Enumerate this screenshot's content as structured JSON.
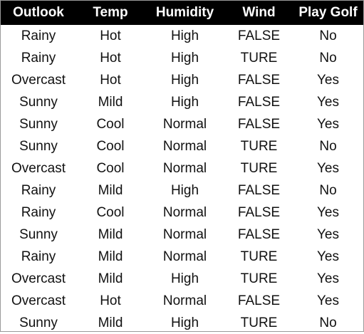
{
  "table": {
    "headers": [
      "Outlook",
      "Temp",
      "Humidity",
      "Wind",
      "Play Golf"
    ],
    "rows": [
      [
        "Rainy",
        "Hot",
        "High",
        "FALSE",
        "No"
      ],
      [
        "Rainy",
        "Hot",
        "High",
        "TURE",
        "No"
      ],
      [
        "Overcast",
        "Hot",
        "High",
        "FALSE",
        "Yes"
      ],
      [
        "Sunny",
        "Mild",
        "High",
        "FALSE",
        "Yes"
      ],
      [
        "Sunny",
        "Cool",
        "Normal",
        "FALSE",
        "Yes"
      ],
      [
        "Sunny",
        "Cool",
        "Normal",
        "TURE",
        "No"
      ],
      [
        "Overcast",
        "Cool",
        "Normal",
        "TURE",
        "Yes"
      ],
      [
        "Rainy",
        "Mild",
        "High",
        "FALSE",
        "No"
      ],
      [
        "Rainy",
        "Cool",
        "Normal",
        "FALSE",
        "Yes"
      ],
      [
        "Sunny",
        "Mild",
        "Normal",
        "FALSE",
        "Yes"
      ],
      [
        "Rainy",
        "Mild",
        "Normal",
        "TURE",
        "Yes"
      ],
      [
        "Overcast",
        "Mild",
        "High",
        "TURE",
        "Yes"
      ],
      [
        "Overcast",
        "Hot",
        "Normal",
        "FALSE",
        "Yes"
      ],
      [
        "Sunny",
        "Mild",
        "High",
        "TURE",
        "No"
      ]
    ]
  },
  "colors": {
    "header_background": "#000000",
    "header_text": "#ffffff",
    "cell_text": "#111111"
  }
}
